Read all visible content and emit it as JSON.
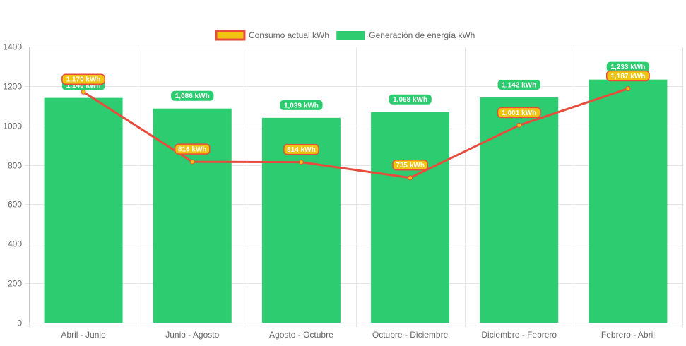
{
  "colors": {
    "generation": "#2ecc71",
    "consumption_line": "#e74c3c",
    "consumption_point": "#f1c40f",
    "grid": "#e6e6e6",
    "axis_text": "#666666",
    "label_text": "#ffffff"
  },
  "chart_data": {
    "type": "bar",
    "title": "",
    "xlabel": "",
    "ylabel": "",
    "ylim": [
      0,
      1400
    ],
    "yticks": [
      0,
      200,
      400,
      600,
      800,
      1000,
      1200,
      1400
    ],
    "ytick_labels": [
      "0",
      "200",
      "400",
      "600",
      "800",
      "1000",
      "1200",
      "1400"
    ],
    "categories": [
      "Abril - Junio",
      "Junio - Agosto",
      "Agosto - Octubre",
      "Octubre - Diciembre",
      "Diciembre - Febrero",
      "Febrero - Abril"
    ],
    "legend": [
      {
        "name": "Consumo actual kWh",
        "kind": "line"
      },
      {
        "name": "Generación de energía kWh",
        "kind": "bar"
      }
    ],
    "series": [
      {
        "name": "Generación de energía kWh",
        "type": "bar",
        "values": [
          1140,
          1086,
          1039,
          1068,
          1142,
          1233
        ],
        "labels": [
          "1,140 kWh",
          "1,086 kWh",
          "1,039 kWh",
          "1,068 kWh",
          "1,142 kWh",
          "1,233 kWh"
        ]
      },
      {
        "name": "Consumo actual kWh",
        "type": "line",
        "values": [
          1170,
          816,
          814,
          735,
          1001,
          1187
        ],
        "labels": [
          "1,170 kWh",
          "816 kWh",
          "814 kWh",
          "735 kWh",
          "1,001 kWh",
          "1,187 kWh"
        ]
      }
    ]
  }
}
